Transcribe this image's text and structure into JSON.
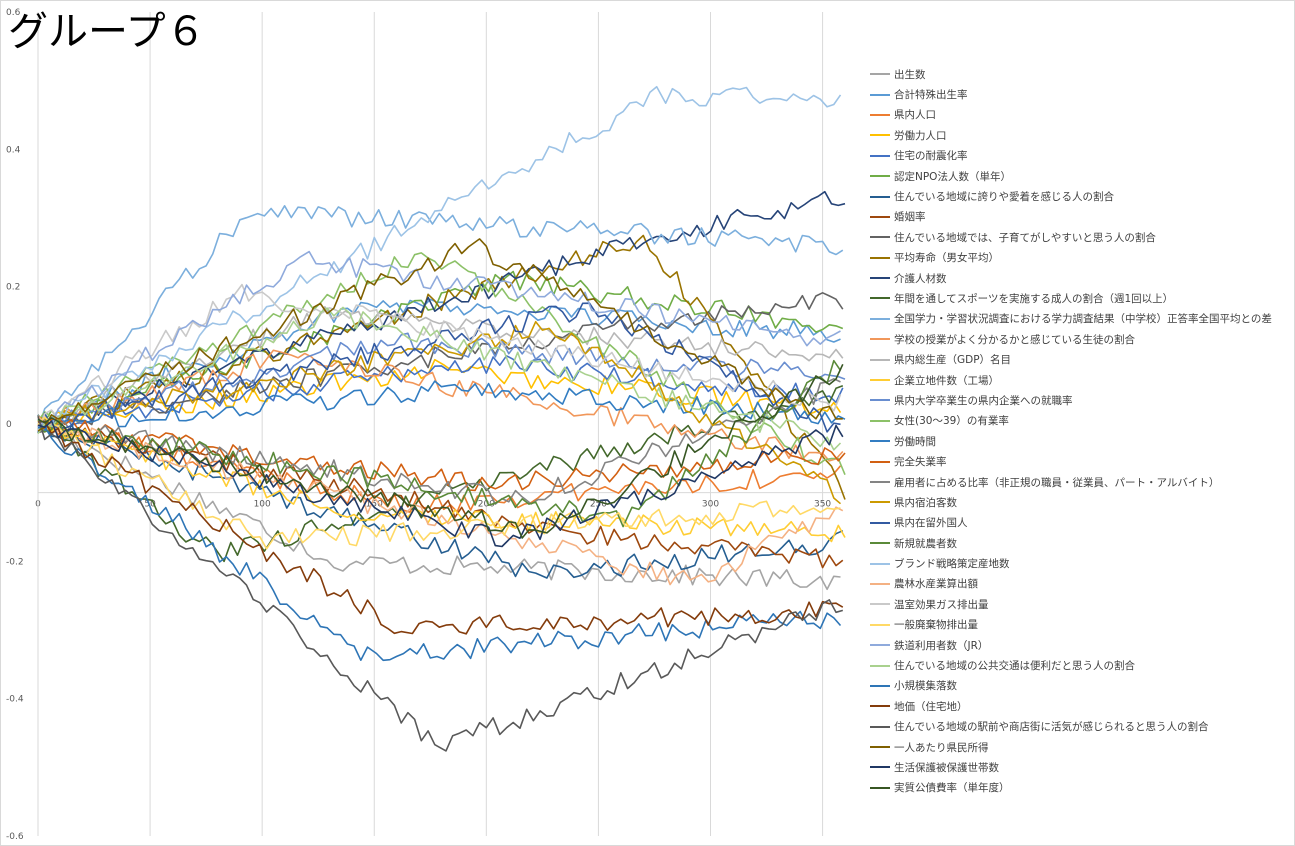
{
  "chart_data": {
    "type": "line",
    "title": "グループ６",
    "xlabel": "",
    "ylabel": "",
    "xlim": [
      0,
      360
    ],
    "ylim": [
      -0.6,
      0.6
    ],
    "x_ticks": [
      "0",
      "50",
      "100",
      "150",
      "200",
      "250",
      "300",
      "350"
    ],
    "y_ticks": [
      "0.6",
      "0.4",
      "0.2",
      "0",
      "-0.2",
      "-0.4",
      "-0.6"
    ],
    "grid": "vertical",
    "legend_position": "right",
    "series": [
      {
        "name": "出生数",
        "color": "#a5a5a5",
        "end": -0.23,
        "extreme": -0.2
      },
      {
        "name": "合計特殊出生率",
        "color": "#5b9bd5",
        "end": 0.13,
        "extreme": 0.18
      },
      {
        "name": "県内人口",
        "color": "#ed7d31",
        "end": -0.07,
        "extreme": -0.12
      },
      {
        "name": "労働力人口",
        "color": "#ffc000",
        "end": 0.02,
        "extreme": 0.08
      },
      {
        "name": "住宅の耐震化率",
        "color": "#4472c4",
        "end": 0.04,
        "extreme": 0.09
      },
      {
        "name": "認定NPO法人数（単年）",
        "color": "#70ad47",
        "end": 0.14,
        "extreme": 0.21
      },
      {
        "name": "住んでいる地域に誇りや愛着を感じる人の割合",
        "color": "#255e91",
        "end": -0.17,
        "extreme": -0.22
      },
      {
        "name": "婚姻率",
        "color": "#9e480e",
        "end": -0.2,
        "extreme": -0.16
      },
      {
        "name": "住んでいる地域では、子育てがしやすいと思う人の割合",
        "color": "#636363",
        "end": 0.18,
        "extreme": 0.14
      },
      {
        "name": "平均寿命（男女平均）",
        "color": "#997300",
        "end": -0.1,
        "extreme": 0.27
      },
      {
        "name": "介護人材数",
        "color": "#264478",
        "end": 0.33,
        "extreme": 0.28
      },
      {
        "name": "年間を通してスポーツを実施する成人の割合（週1回以上）",
        "color": "#43682b",
        "end": 0.05,
        "extreme": -0.19
      },
      {
        "name": "全国学力・学習状況調査における学力調査結果（中学校）正答率全国平均との差",
        "color": "#7cafdd",
        "end": 0.26,
        "extreme": 0.31
      },
      {
        "name": "学校の授業がよく分かるかと感じている生徒の割合",
        "color": "#f1975a",
        "end": -0.05,
        "extreme": 0.1
      },
      {
        "name": "県内総生産（GDP）名目",
        "color": "#b7b7b7",
        "end": 0.1,
        "extreme": 0.16
      },
      {
        "name": "企業立地件数（工場）",
        "color": "#ffcd33",
        "end": -0.16,
        "extreme": -0.13
      },
      {
        "name": "県内大学卒業生の県内企業への就職率",
        "color": "#698ed0",
        "end": 0.07,
        "extreme": 0.12
      },
      {
        "name": "女性(30〜39）の有業率",
        "color": "#8cc168",
        "end": -0.07,
        "extreme": 0.25
      },
      {
        "name": "労働時間",
        "color": "#327dc2",
        "end": 0.01,
        "extreme": 0.05
      },
      {
        "name": "完全失業率",
        "color": "#d26012",
        "end": -0.04,
        "extreme": -0.09
      },
      {
        "name": "雇用者に占める比率（非正規の職員・従業員、パート・アルバイト）",
        "color": "#848484",
        "end": 0.06,
        "extreme": -0.11
      },
      {
        "name": "県内宿泊客数",
        "color": "#cc9a00",
        "end": -0.11,
        "extreme": 0.14
      },
      {
        "name": "県内在留外国人",
        "color": "#335aa1",
        "end": -0.01,
        "extreme": 0.17
      },
      {
        "name": "新規就農者数",
        "color": "#5a8a39",
        "end": 0.09,
        "extreme": -0.14
      },
      {
        "name": "ブランド戦略策定産地数",
        "color": "#9dc3e6",
        "end": 0.47,
        "extreme": 0.48
      },
      {
        "name": "農林水産業算出額",
        "color": "#f4b183",
        "end": -0.12,
        "extreme": -0.23
      },
      {
        "name": "温室効果ガス排出量",
        "color": "#c9c9c9",
        "end": 0.03,
        "extreme": 0.19
      },
      {
        "name": "一般廃棄物排出量",
        "color": "#ffd966",
        "end": -0.12,
        "extreme": -0.17
      },
      {
        "name": "鉄道利用者数（JR）",
        "color": "#8faadc",
        "end": 0.12,
        "extreme": 0.24
      },
      {
        "name": "住んでいる地域の公共交通は便利だと思う人の割合",
        "color": "#a9d18e",
        "end": -0.03,
        "extreme": 0.16
      },
      {
        "name": "小規模集落数",
        "color": "#2e75b6",
        "end": -0.28,
        "extreme": -0.34
      },
      {
        "name": "地価（住宅地）",
        "color": "#843c0c",
        "end": -0.27,
        "extreme": -0.3
      },
      {
        "name": "住んでいる地域の駅前や商店街に活気が感じられると思う人の割合",
        "color": "#595959",
        "end": -0.26,
        "extreme": -0.47
      },
      {
        "name": "一人あたり県民所得",
        "color": "#7f6000",
        "end": 0.0,
        "extreme": 0.26
      },
      {
        "name": "生活保護被保護世帯数",
        "color": "#203864",
        "end": -0.01,
        "extreme": -0.17
      },
      {
        "name": "実質公債費率（単年度）",
        "color": "#375623",
        "end": 0.08,
        "extreme": -0.16
      }
    ]
  }
}
